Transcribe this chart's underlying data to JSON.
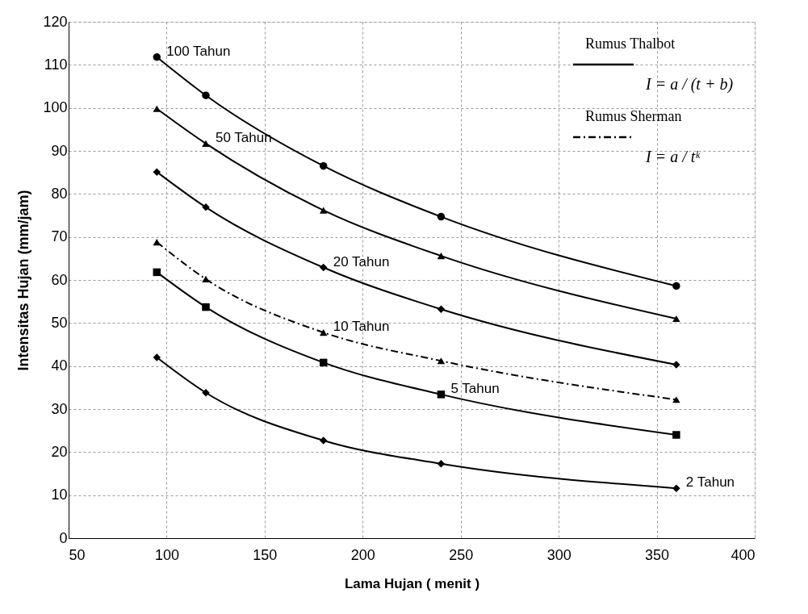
{
  "chart_data": {
    "type": "line",
    "xlabel": "Lama Hujan ( menit )",
    "ylabel": "Intensitas Hujan (mm/jam)",
    "x": [
      95,
      120,
      180,
      240,
      360
    ],
    "series": [
      {
        "color": "#000000",
        "marker": "circle",
        "line_style": "solid",
        "values": [
          111.8,
          102.9,
          86.5,
          74.7,
          58.6
        ]
      },
      {
        "color": "#000000",
        "marker": "triangle",
        "line_style": "solid",
        "values": [
          99.8,
          91.7,
          76.2,
          65.6,
          51
        ]
      },
      {
        "color": "#000000",
        "marker": "diamond",
        "line_style": "solid",
        "values": [
          85.1,
          76.9,
          62.9,
          53.2,
          40.3
        ]
      },
      {
        "color": "#000000",
        "marker": "triangle",
        "line_style": "dashed",
        "values": [
          68.8,
          60.2,
          47.8,
          41.2,
          32.2
        ]
      },
      {
        "color": "#000000",
        "marker": "square",
        "line_style": "solid",
        "values": [
          61.8,
          53.7,
          40.8,
          33.4,
          24
        ]
      },
      {
        "color": "#000000",
        "marker": "diamond",
        "line_style": "solid",
        "values": [
          42,
          33.8,
          22.7,
          17.3,
          11.6
        ]
      }
    ],
    "annotations": [
      {
        "text": "100 Tahun",
        "x": 95,
        "y": 111.8
      },
      {
        "text": "50 Tahun",
        "x": 120,
        "y": 91.7
      },
      {
        "text": "20 Tahun",
        "x": 180,
        "y": 62.9
      },
      {
        "text": "10 Tahun",
        "x": 180,
        "y": 47.8
      },
      {
        "text": "5 Tahun",
        "x": 240,
        "y": 33.4
      },
      {
        "text": "2 Tahun",
        "x": 360,
        "y": 11.6
      },
      "Rumus Thalbot",
      "I = a / (t + b)",
      "Rumus Sherman",
      "I = a / tᵏ"
    ],
    "xlim": [
      50,
      400
    ],
    "xticks": [
      50,
      100,
      150,
      200,
      250,
      300,
      350,
      400
    ],
    "ylim": [
      0,
      120
    ],
    "yticks": [
      0,
      10,
      20,
      30,
      40,
      50,
      60,
      70,
      80,
      90,
      100,
      110,
      120
    ],
    "grid": true
  }
}
